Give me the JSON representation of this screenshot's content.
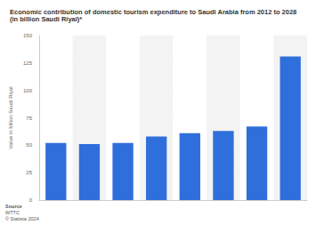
{
  "chart_data": {
    "type": "bar",
    "title": "Economic contribution of domestic tourism expenditure to Saudi Arabia from 2012 to 2028 (in billion Saudi Riyal)*",
    "y_label": "Value in billion Saudi Riyal",
    "source": [
      "Source",
      "WTTC",
      "© Statista 2024"
    ],
    "categories": [
      null,
      null,
      null,
      null,
      null,
      null,
      null,
      null
    ],
    "values": [
      52,
      51,
      52,
      58,
      61,
      63,
      67,
      131
    ],
    "color": "#2f6fdb",
    "ylim": [
      0,
      150
    ],
    "yticks": [
      0,
      25,
      50,
      75,
      100,
      125,
      150
    ],
    "grid": true,
    "tick_labels": "y"
  }
}
